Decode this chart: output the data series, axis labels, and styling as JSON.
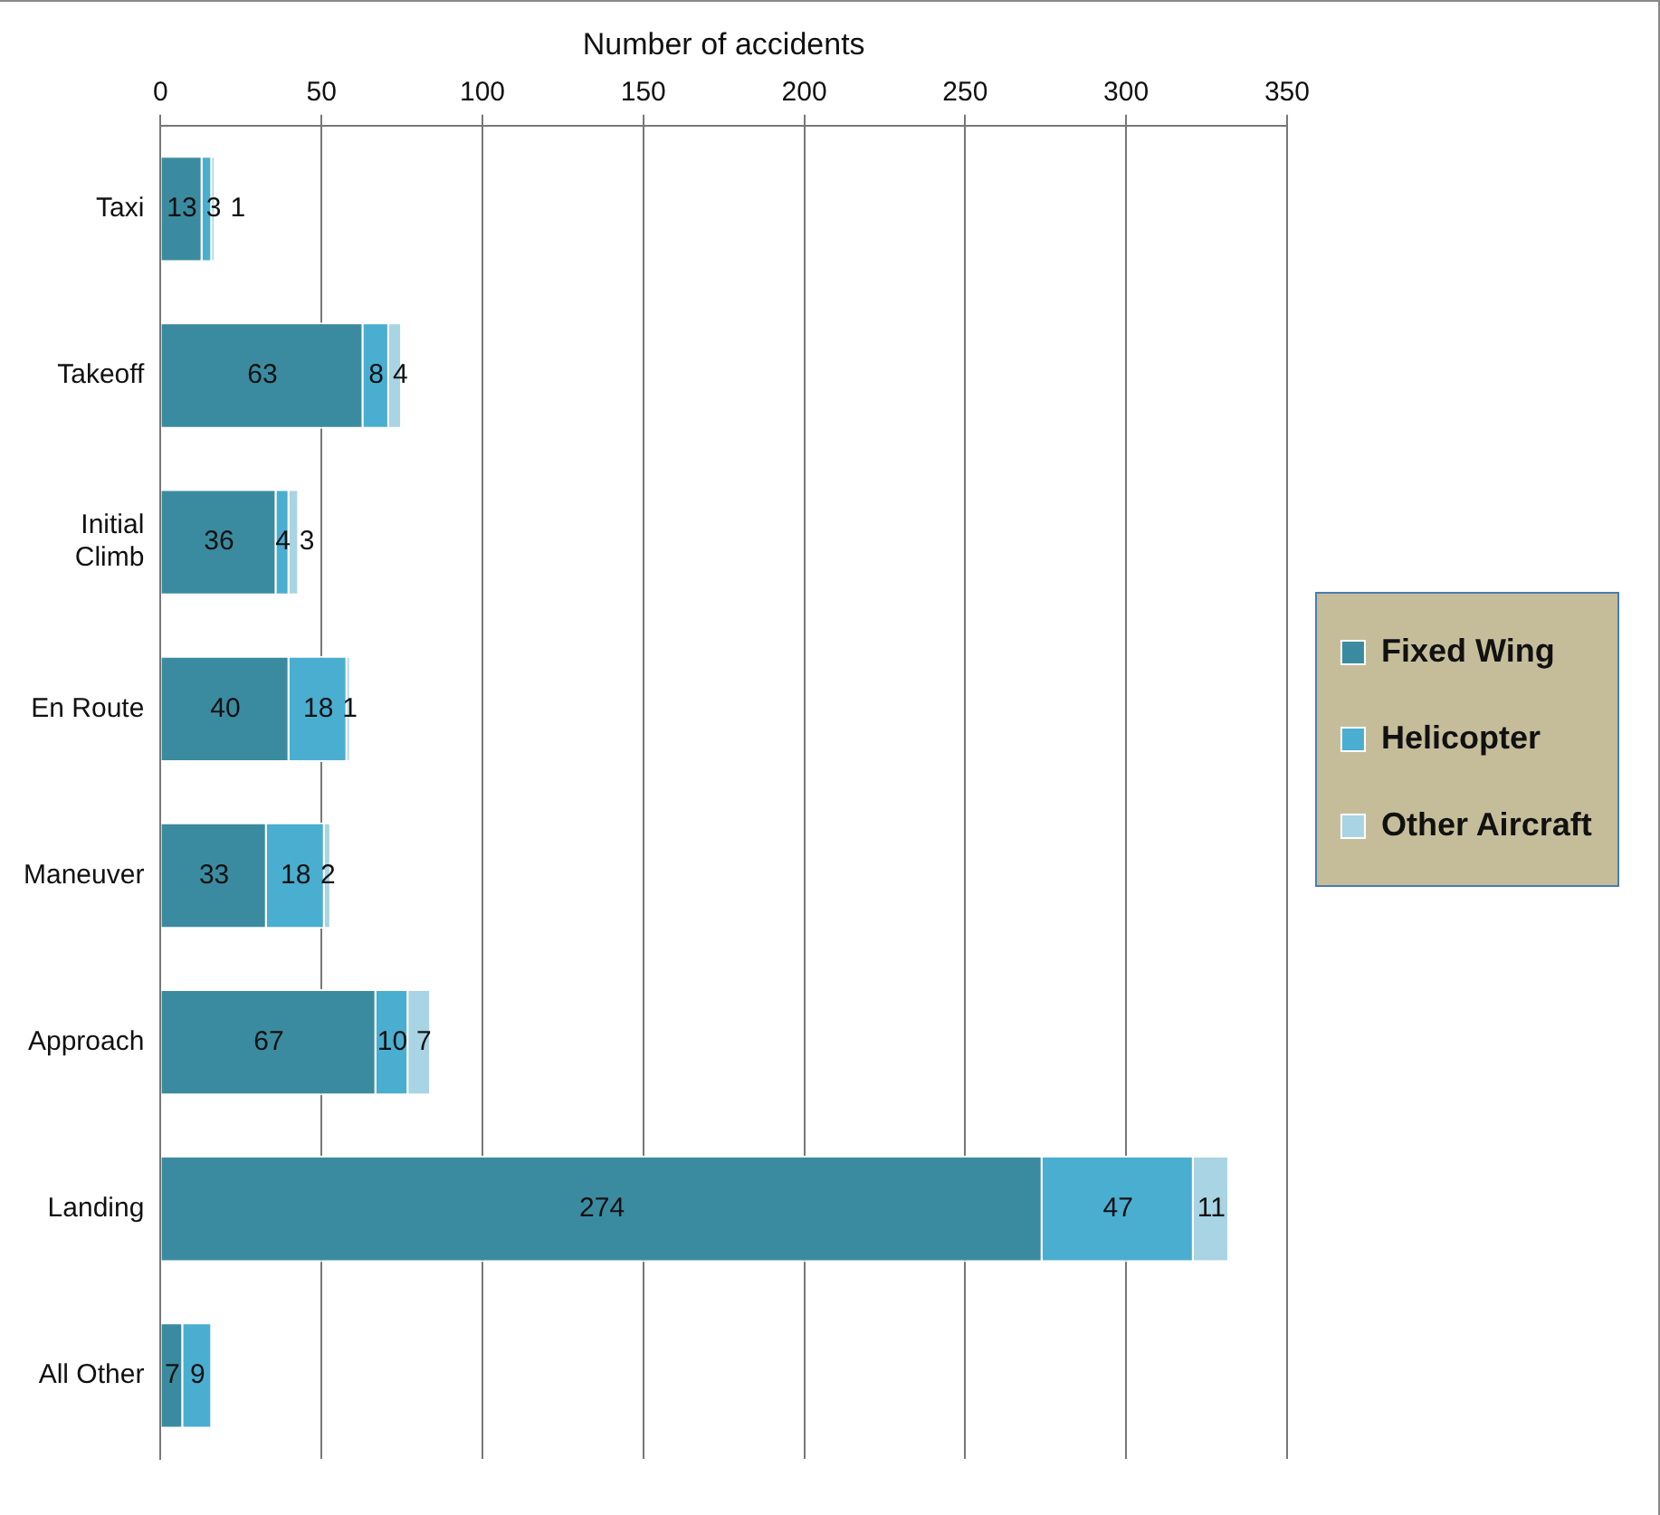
{
  "chart_data": {
    "type": "bar",
    "orientation": "horizontal",
    "stacked": true,
    "xlabel": "Number of accidents",
    "categories": [
      "Taxi",
      "Takeoff",
      "Initial Climb",
      "En Route",
      "Maneuver",
      "Approach",
      "Landing",
      "All Other"
    ],
    "series": [
      {
        "name": "Fixed Wing",
        "color": "#3b8ba0",
        "values": [
          13,
          63,
          36,
          40,
          33,
          67,
          274,
          7
        ]
      },
      {
        "name": "Helicopter",
        "color": "#4aaed0",
        "values": [
          3,
          8,
          4,
          18,
          18,
          10,
          47,
          9
        ]
      },
      {
        "name": "Other Aircraft",
        "color": "#a8d4e3",
        "values": [
          1,
          4,
          3,
          1,
          2,
          7,
          11,
          null
        ]
      }
    ],
    "xlim": [
      0,
      350
    ],
    "xticks": [
      0,
      50,
      100,
      150,
      200,
      250,
      300,
      350
    ],
    "grid": "x",
    "legend": "right",
    "data_labels": true
  }
}
